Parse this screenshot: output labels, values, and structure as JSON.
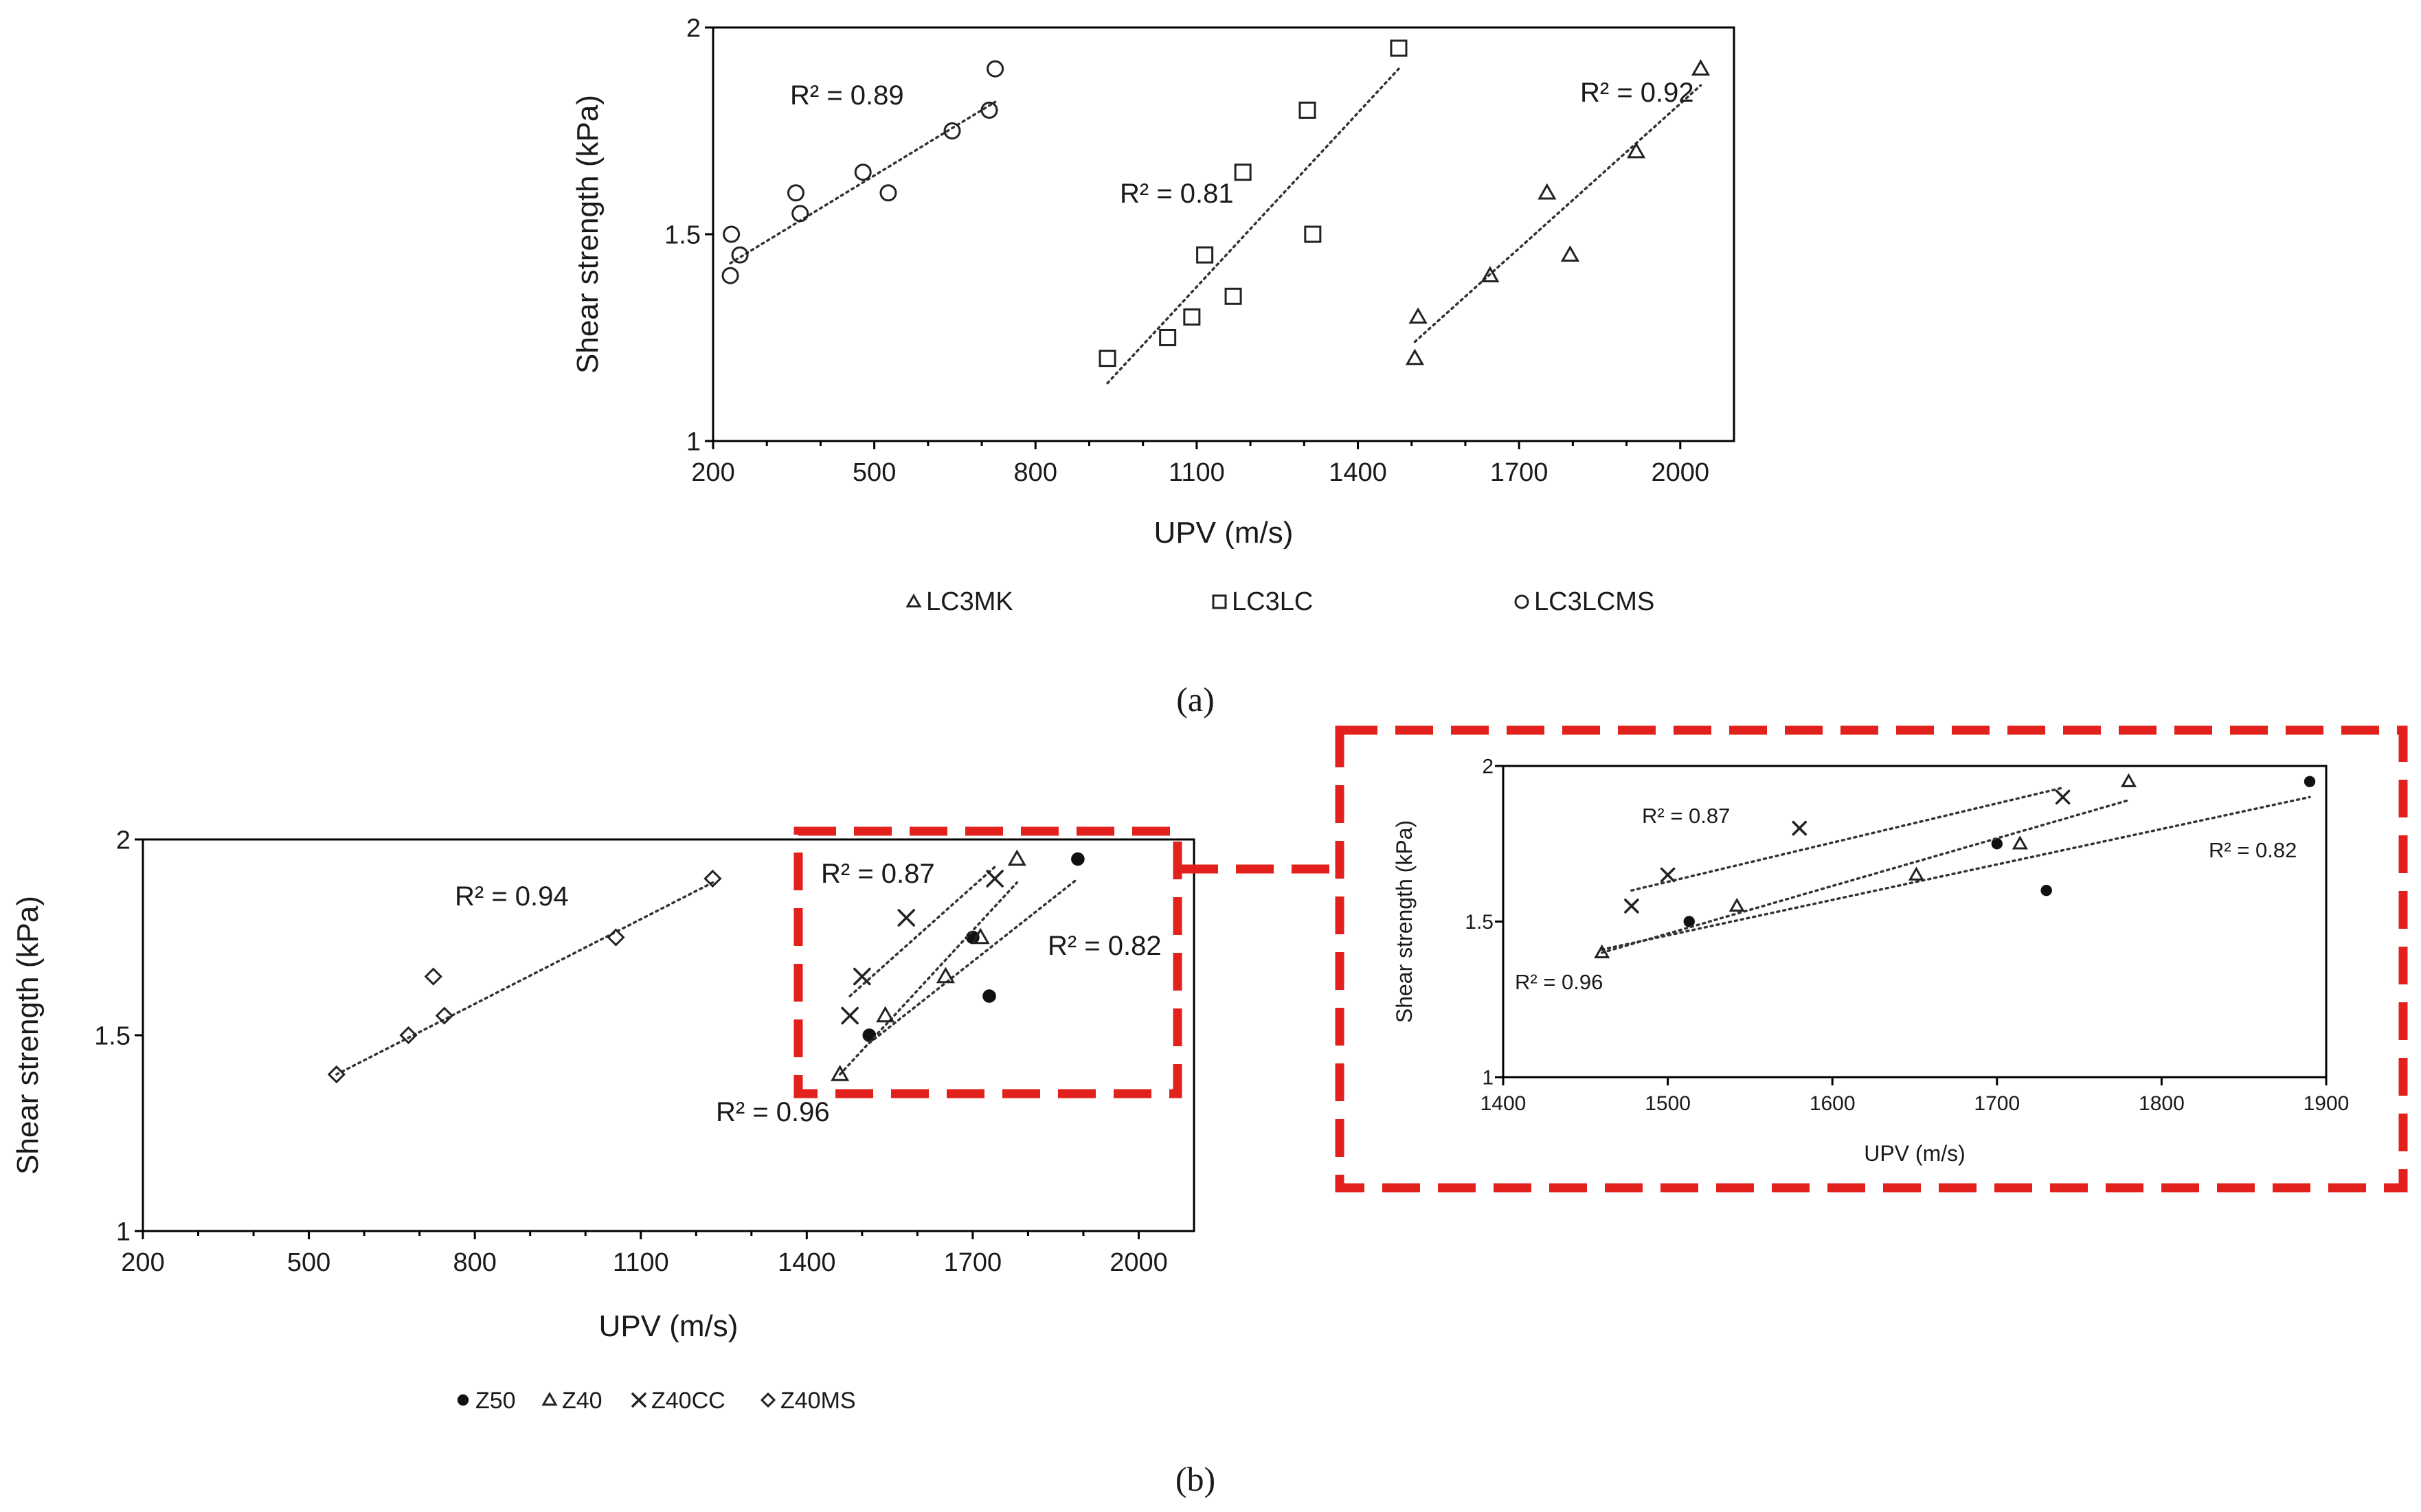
{
  "colors": {
    "marker": "#222222",
    "trendline": "#333333",
    "zoom_box": "#e3211c",
    "background": "#ffffff"
  },
  "captions": {
    "a": "(a)",
    "b": "(b)"
  },
  "chart_data": [
    {
      "id": "a",
      "type": "scatter",
      "title": "",
      "xlabel": "UPV (m/s)",
      "ylabel": "Shear strength (kPa)",
      "xlim": [
        200,
        2100
      ],
      "ylim": [
        1,
        2
      ],
      "xticks": [
        200,
        500,
        800,
        1100,
        1400,
        1700,
        2000
      ],
      "yticks": [
        1,
        1.5,
        2
      ],
      "ytick_labels": [
        "1",
        "1.5",
        "2"
      ],
      "legend": {
        "position": "bottom",
        "layout": "row-wide"
      },
      "series": [
        {
          "name": "LC3MK",
          "marker": "triangle",
          "x": [
            1506,
            1512,
            1646,
            1752,
            1795,
            1918,
            2038
          ],
          "y": [
            1.2,
            1.3,
            1.4,
            1.6,
            1.45,
            1.7,
            1.9
          ],
          "trend": {
            "x": [
              1506,
              2038
            ],
            "y": [
              1.24,
              1.86
            ]
          },
          "r2": "R² = 0.92"
        },
        {
          "name": "LC3LC",
          "marker": "square",
          "x": [
            934,
            1046,
            1091,
            1115,
            1168,
            1186,
            1306,
            1316,
            1476
          ],
          "y": [
            1.2,
            1.25,
            1.3,
            1.45,
            1.35,
            1.65,
            1.8,
            1.5,
            1.95
          ],
          "trend": {
            "x": [
              934,
              1476
            ],
            "y": [
              1.14,
              1.9
            ]
          },
          "r2": "R² = 0.81"
        },
        {
          "name": "LC3LCMS",
          "marker": "circle",
          "x": [
            232,
            234,
            250,
            354,
            362,
            479,
            526,
            645,
            714,
            725
          ],
          "y": [
            1.4,
            1.5,
            1.45,
            1.6,
            1.55,
            1.65,
            1.6,
            1.75,
            1.8,
            1.9
          ],
          "trend": {
            "x": [
              232,
              725
            ],
            "y": [
              1.43,
              1.82
            ]
          },
          "r2": "R² = 0.89"
        }
      ]
    },
    {
      "id": "b",
      "type": "scatter",
      "title": "",
      "xlabel": "UPV (m/s)",
      "ylabel": "Shear strength (kPa)",
      "xlim": [
        200,
        2100
      ],
      "ylim": [
        1,
        2
      ],
      "xticks": [
        200,
        500,
        800,
        1100,
        1400,
        1700,
        2000
      ],
      "yticks": [
        1,
        1.5,
        2
      ],
      "ytick_labels": [
        "1",
        "1.5",
        "2"
      ],
      "legend": {
        "position": "bottom",
        "layout": "row-compact"
      },
      "series": [
        {
          "name": "Z50",
          "marker": "dot",
          "x": [
            1513,
            1700,
            1730,
            1890
          ],
          "y": [
            1.5,
            1.75,
            1.6,
            1.95
          ],
          "trend": {
            "x": [
              1513,
              1890
            ],
            "y": [
              1.48,
              1.9
            ]
          },
          "r2": "R² = 0.82"
        },
        {
          "name": "Z40",
          "marker": "triangle",
          "x": [
            1460,
            1542,
            1651,
            1714,
            1780
          ],
          "y": [
            1.4,
            1.55,
            1.65,
            1.75,
            1.95
          ],
          "trend": {
            "x": [
              1460,
              1780
            ],
            "y": [
              1.4,
              1.89
            ]
          },
          "r2": "R² = 0.96"
        },
        {
          "name": "Z40CC",
          "marker": "cross",
          "x": [
            1478,
            1500,
            1580,
            1740
          ],
          "y": [
            1.55,
            1.65,
            1.8,
            1.9
          ],
          "trend": {
            "x": [
              1478,
              1740
            ],
            "y": [
              1.6,
              1.93
            ]
          },
          "r2": "R² = 0.87"
        },
        {
          "name": "Z40MS",
          "marker": "diamond",
          "x": [
            550,
            680,
            725,
            745,
            1055,
            1230
          ],
          "y": [
            1.4,
            1.5,
            1.65,
            1.55,
            1.75,
            1.9
          ],
          "trend": {
            "x": [
              550,
              1230
            ],
            "y": [
              1.4,
              1.89
            ]
          },
          "r2": "R² = 0.94"
        }
      ]
    },
    {
      "id": "b-zoom",
      "type": "scatter",
      "title": "",
      "xlabel": "UPV (m/s)",
      "ylabel": "Shear strength (kPa)",
      "xlim": [
        1400,
        1900
      ],
      "ylim": [
        1,
        2
      ],
      "xticks": [
        1400,
        1500,
        1600,
        1700,
        1800,
        1900
      ],
      "yticks": [
        1,
        1.5,
        2
      ],
      "ytick_labels": [
        "1",
        "1.5",
        "2"
      ],
      "legend": {
        "position": "none"
      },
      "series": [
        {
          "name": "Z50",
          "marker": "dot",
          "x": [
            1513,
            1700,
            1730,
            1890
          ],
          "y": [
            1.5,
            1.75,
            1.6,
            1.95
          ],
          "trend": {
            "x": [
              1460,
              1890
            ],
            "y": [
              1.41,
              1.9
            ]
          },
          "r2": "R² = 0.82"
        },
        {
          "name": "Z40",
          "marker": "triangle",
          "x": [
            1460,
            1542,
            1651,
            1714,
            1780
          ],
          "y": [
            1.4,
            1.55,
            1.65,
            1.75,
            1.95
          ],
          "trend": {
            "x": [
              1460,
              1780
            ],
            "y": [
              1.4,
              1.89
            ]
          },
          "r2": "R² = 0.96"
        },
        {
          "name": "Z40CC",
          "marker": "cross",
          "x": [
            1478,
            1500,
            1580,
            1740
          ],
          "y": [
            1.55,
            1.65,
            1.8,
            1.9
          ],
          "trend": {
            "x": [
              1478,
              1740
            ],
            "y": [
              1.6,
              1.93
            ]
          },
          "r2": "R² = 0.87"
        }
      ]
    }
  ]
}
